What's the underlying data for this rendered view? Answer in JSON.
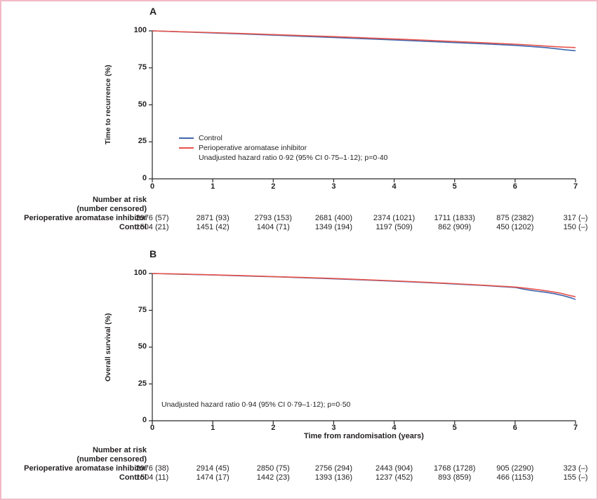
{
  "figure": {
    "border_color": "#f2b9c6",
    "background": "#ffffff",
    "text_color": "#231f20",
    "axis_color": "#2b2728"
  },
  "chart_data": [
    {
      "type": "line",
      "panel": "A",
      "title": "",
      "xlabel": "",
      "ylabel": "Time to recurrence (%)",
      "xlim": [
        0,
        7
      ],
      "ylim": [
        0,
        100
      ],
      "xticks": [
        0,
        1,
        2,
        3,
        4,
        5,
        6,
        7
      ],
      "yticks": [
        100,
        75,
        50,
        25,
        0
      ],
      "grid": false,
      "legend_position": "lower-left-inside",
      "annotation": "Unadjusted hazard ratio 0·92 (95% CI 0·75–1·12); p=0·40",
      "series": [
        {
          "name": "Control",
          "color": "#3e66ae",
          "points": [
            [
              0,
              100
            ],
            [
              0.5,
              99.3
            ],
            [
              1,
              98.6
            ],
            [
              1.5,
              97.9
            ],
            [
              2,
              97.1
            ],
            [
              2.5,
              96.3
            ],
            [
              3,
              95.5
            ],
            [
              3.5,
              94.7
            ],
            [
              4,
              93.9
            ],
            [
              4.5,
              93.0
            ],
            [
              5,
              92.1
            ],
            [
              5.5,
              91.2
            ],
            [
              6,
              90.2
            ],
            [
              6.25,
              89.5
            ],
            [
              6.5,
              88.7
            ],
            [
              6.7,
              87.8
            ],
            [
              6.85,
              87.1
            ],
            [
              7,
              86.6
            ]
          ]
        },
        {
          "name": "Perioperative aromatase inhibitor",
          "color": "#e8534b",
          "points": [
            [
              0,
              100
            ],
            [
              0.5,
              99.4
            ],
            [
              1,
              98.8
            ],
            [
              1.5,
              98.2
            ],
            [
              2,
              97.5
            ],
            [
              2.5,
              96.8
            ],
            [
              3,
              96.1
            ],
            [
              3.5,
              95.3
            ],
            [
              4,
              94.5
            ],
            [
              4.5,
              93.7
            ],
            [
              5,
              92.8
            ],
            [
              5.5,
              91.9
            ],
            [
              6,
              91.0
            ],
            [
              6.3,
              90.3
            ],
            [
              6.6,
              89.5
            ],
            [
              6.8,
              89.0
            ],
            [
              7,
              88.7
            ]
          ]
        }
      ],
      "number_at_risk": {
        "header": [
          "Number at risk",
          "(number censored)"
        ],
        "rows": [
          {
            "label": "Perioperative aromatase inhibitor",
            "values": [
              "2976 (57)",
              "2871 (93)",
              "2793 (153)",
              "2681 (400)",
              "2374 (1021)",
              "1711 (1833)",
              "875 (2382)",
              "317 (–)"
            ]
          },
          {
            "label": "Control",
            "values": [
              "1504 (21)",
              "1451 (42)",
              "1404 (71)",
              "1349 (194)",
              "1197 (509)",
              "862 (909)",
              "450 (1202)",
              "150 (–)"
            ]
          }
        ]
      }
    },
    {
      "type": "line",
      "panel": "B",
      "title": "",
      "xlabel": "Time from randomisation (years)",
      "ylabel": "Overall survival (%)",
      "xlim": [
        0,
        7
      ],
      "ylim": [
        0,
        100
      ],
      "xticks": [
        0,
        1,
        2,
        3,
        4,
        5,
        6,
        7
      ],
      "yticks": [
        100,
        75,
        50,
        25,
        0
      ],
      "grid": false,
      "legend_position": "none",
      "annotation": "Unadjusted hazard ratio 0·94 (95% CI 0·79–1·12); p=0·50",
      "series": [
        {
          "name": "Control",
          "color": "#3e66ae",
          "points": [
            [
              0,
              100
            ],
            [
              0.5,
              99.5
            ],
            [
              1,
              99.0
            ],
            [
              1.5,
              98.4
            ],
            [
              2,
              97.8
            ],
            [
              2.5,
              97.1
            ],
            [
              3,
              96.4
            ],
            [
              3.5,
              95.6
            ],
            [
              4,
              94.8
            ],
            [
              4.5,
              93.9
            ],
            [
              5,
              92.9
            ],
            [
              5.5,
              91.8
            ],
            [
              6,
              90.5
            ],
            [
              6.15,
              89.3
            ],
            [
              6.3,
              88.3
            ],
            [
              6.5,
              87.3
            ],
            [
              6.65,
              86.3
            ],
            [
              6.8,
              84.9
            ],
            [
              6.95,
              83.2
            ],
            [
              7,
              82.3
            ]
          ]
        },
        {
          "name": "Perioperative aromatase inhibitor",
          "color": "#e8534b",
          "points": [
            [
              0,
              100
            ],
            [
              0.5,
              99.6
            ],
            [
              1,
              99.1
            ],
            [
              1.5,
              98.5
            ],
            [
              2,
              97.9
            ],
            [
              2.5,
              97.3
            ],
            [
              3,
              96.6
            ],
            [
              3.5,
              95.8
            ],
            [
              4,
              95.0
            ],
            [
              4.5,
              94.1
            ],
            [
              5,
              93.1
            ],
            [
              5.5,
              92.0
            ],
            [
              6,
              90.8
            ],
            [
              6.2,
              89.9
            ],
            [
              6.4,
              88.9
            ],
            [
              6.6,
              87.7
            ],
            [
              6.75,
              86.6
            ],
            [
              6.9,
              85.1
            ],
            [
              7,
              84.2
            ]
          ]
        }
      ],
      "number_at_risk": {
        "header": [
          "Number at risk",
          "(number censored)"
        ],
        "rows": [
          {
            "label": "Perioperative aromatase inhibitor",
            "values": [
              "2976 (38)",
              "2914 (45)",
              "2850 (75)",
              "2756 (294)",
              "2443 (904)",
              "1768 (1728)",
              "905 (2290)",
              "323 (–)"
            ]
          },
          {
            "label": "Control",
            "values": [
              "1504 (11)",
              "1474 (17)",
              "1442 (23)",
              "1393 (136)",
              "1237 (452)",
              "893 (859)",
              "466 (1153)",
              "155 (–)"
            ]
          }
        ]
      }
    }
  ]
}
